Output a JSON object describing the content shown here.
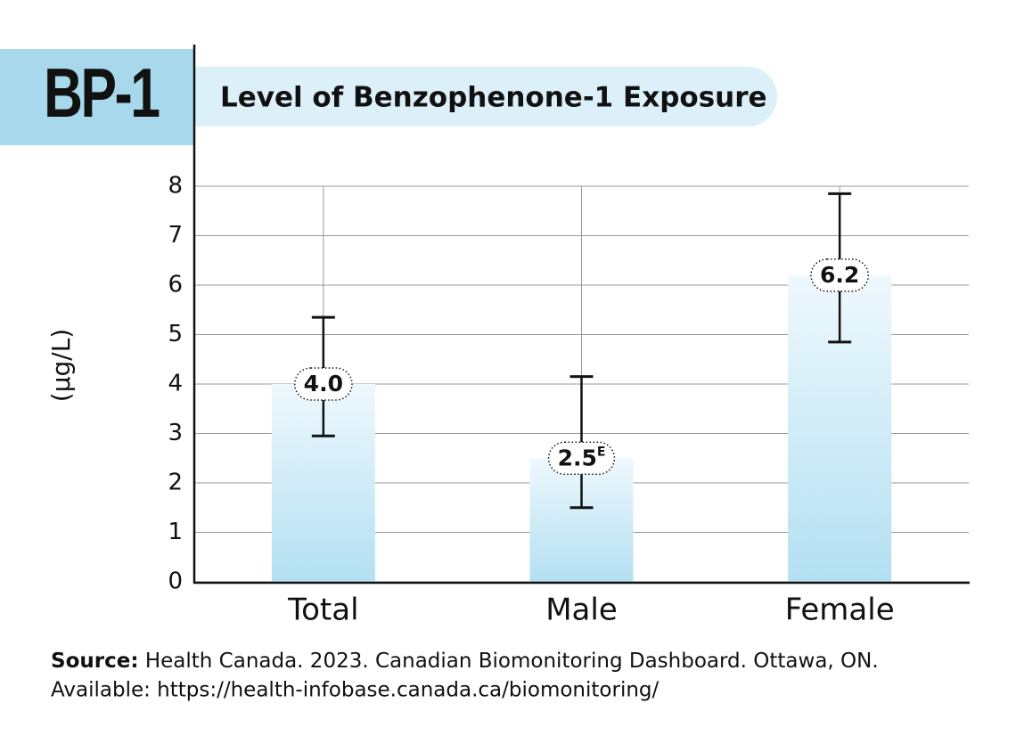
{
  "chart_data": {
    "type": "bar",
    "badge": "BP-1",
    "title": "Level of Benzophenone-1 Exposure",
    "y_label": "(µg/L)",
    "categories": [
      "Total",
      "Male",
      "Female"
    ],
    "values": [
      4.0,
      2.5,
      6.2
    ],
    "value_labels": [
      "4.0",
      "2.5",
      "6.2"
    ],
    "value_label_superscripts": [
      null,
      "E",
      null
    ],
    "ci_lower": [
      2.95,
      1.5,
      4.85
    ],
    "ci_upper": [
      5.35,
      4.15,
      7.85
    ],
    "color": "#b3e0f2",
    "ylim": [
      0,
      8
    ],
    "yticks": [
      0,
      1,
      2,
      3,
      4,
      5,
      6,
      7,
      8
    ],
    "grid": true,
    "source": {
      "label": "Source:",
      "text": "Health Canada. 2023. Canadian Biomonitoring Dashboard. Ottawa, ON.",
      "available": "Available: https://health-infobase.canada.ca/biomonitoring/"
    }
  }
}
